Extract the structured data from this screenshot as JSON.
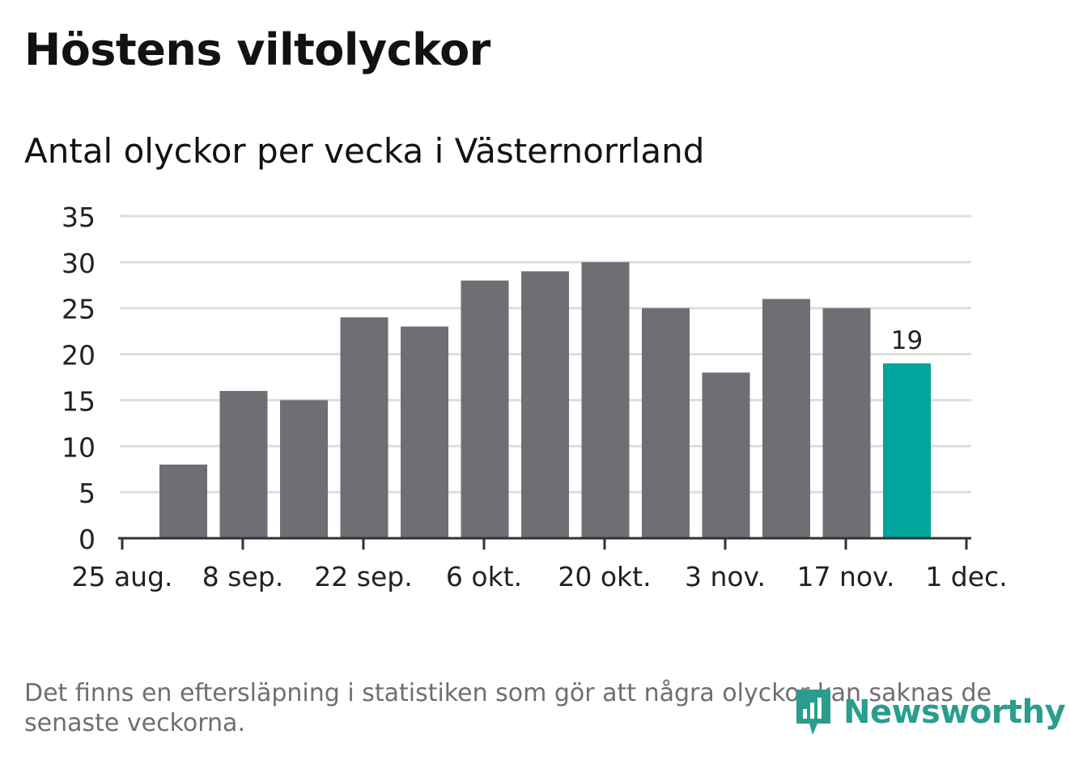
{
  "title": "Höstens viltolyckor",
  "subtitle": "Antal olyckor per vecka i Västernorrland",
  "footnote": "Det finns en eftersläpning i statistiken som gör att några olyckor kan saknas de senaste veckorna.",
  "logo": {
    "text": "Newsworthy",
    "icon": "newsworthy-logo-icon"
  },
  "colors": {
    "bar": "#6f6e74",
    "highlight": "#00a59b",
    "grid": "#dddddd",
    "axis": "#333333",
    "logo": "#2a9d8f"
  },
  "chart_data": {
    "type": "bar",
    "title": "Antal olyckor per vecka i Västernorrland",
    "xlabel": "",
    "ylabel": "",
    "ylim": [
      0,
      35
    ],
    "yticks": [
      0,
      5,
      10,
      15,
      20,
      25,
      30,
      35
    ],
    "xticks": [
      "25 aug.",
      "8 sep.",
      "22 sep.",
      "6 okt.",
      "20 okt.",
      "3 nov.",
      "17 nov.",
      "1 dec."
    ],
    "values": [
      8,
      16,
      15,
      24,
      23,
      28,
      29,
      30,
      25,
      18,
      26,
      25,
      19
    ],
    "highlight_index": 12,
    "highlight_label": "19",
    "grid": true
  }
}
